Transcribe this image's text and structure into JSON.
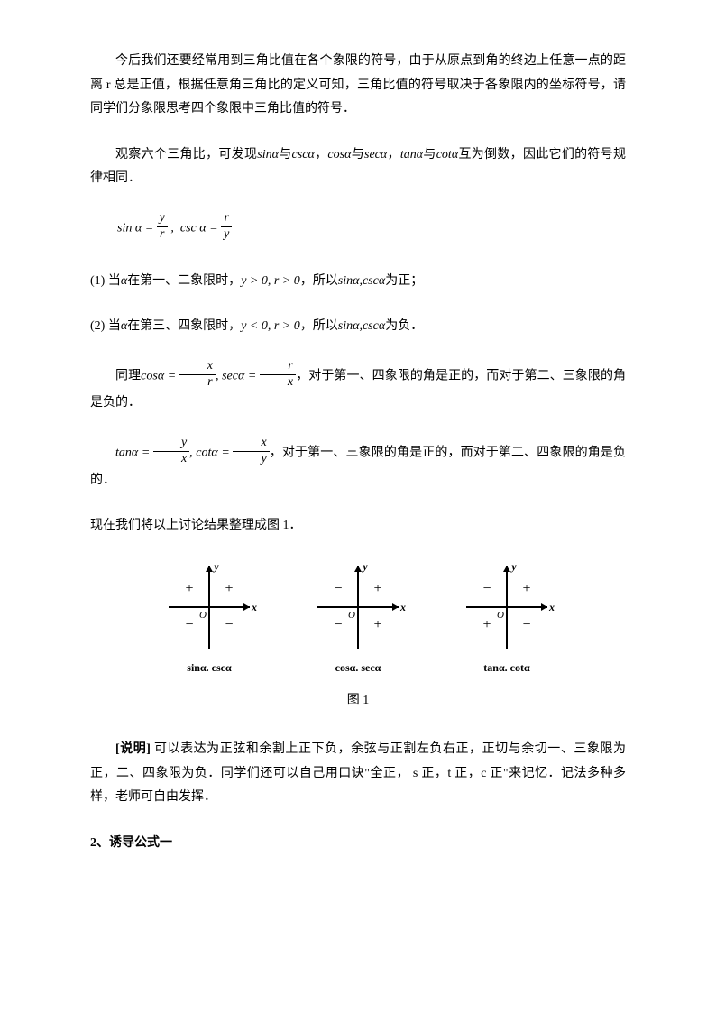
{
  "p1": "今后我们还要经常用到三角比值在各个象限的符号，由于从原点到角的终边上任意一点的距离 r 总是正值，根据任意角三角比的定义可知，三角比值的符号取决于各象限内的坐标符号，请同学们分象限思考四个象限中三角比值的符号．",
  "p2_a": "观察六个三角比，可发现",
  "p2_b": "与",
  "p2_c": "，",
  "p2_d": "与",
  "p2_e": "，",
  "p2_f": "与",
  "p2_g": "互为倒数，因此它们的符号规律相同．",
  "eq1_sin": "sin",
  "eq1_csc": "csc",
  "eq1_alpha": "α",
  "eq1_y": "y",
  "eq1_r": "r",
  "li1_a": "(1) 当",
  "li1_b": "在第一、二象限时，",
  "li1_c": "y > 0, r > 0",
  "li1_d": "，所以",
  "li1_e": "为正；",
  "li2_a": "(2) 当",
  "li2_b": "在第三、四象限时，",
  "li2_c": "y < 0, r > 0",
  "li2_d": "，所以",
  "li2_e": "为负．",
  "p3_a": "同理",
  "p3_b": "，对于第一、四象限的角是正的，而对于第二、三象限的角是负的．",
  "p4_a": "，对于第一、三象限的角是正的，而对于第二、四象限的角是负的．",
  "p5": "现在我们将以上讨论结果整理成图 1．",
  "cos": "cos",
  "sec": "sec",
  "tan": "tan",
  "cot": "cot",
  "sin": "sin",
  "csc": "csc",
  "alpha": "α",
  "x": "x",
  "y": "y",
  "r": "r",
  "diagrams": [
    {
      "q1": "+",
      "q2": "+",
      "q3": "−",
      "q4": "−",
      "label": "sinα. cscα"
    },
    {
      "q1": "+",
      "q2": "−",
      "q3": "−",
      "q4": "+",
      "label": "cosα. secα"
    },
    {
      "q1": "+",
      "q2": "−",
      "q3": "+",
      "q4": "−",
      "label": "tanα. cotα"
    }
  ],
  "axis_x": "x",
  "axis_y": "y",
  "origin": "O",
  "fig_caption": "图 1",
  "note_label": "[说明]",
  "note_a": " 可以表达为正弦和余割上正下负，余弦与正割左负右正，正切与余切一、三象限为正，二、四象限为负．同学们还可以自己用口诀\"",
  "note_b": "全正， s 正，t 正，c 正",
  "note_c": "\"来记忆．记法多种多样，老师可自由发挥．",
  "section2": "2、诱导公式一",
  "style": {
    "text_color": "#000000",
    "bg_color": "#ffffff",
    "font_size": 14,
    "diagram_stroke": "#000000",
    "diagram_stroke_width": 2
  }
}
